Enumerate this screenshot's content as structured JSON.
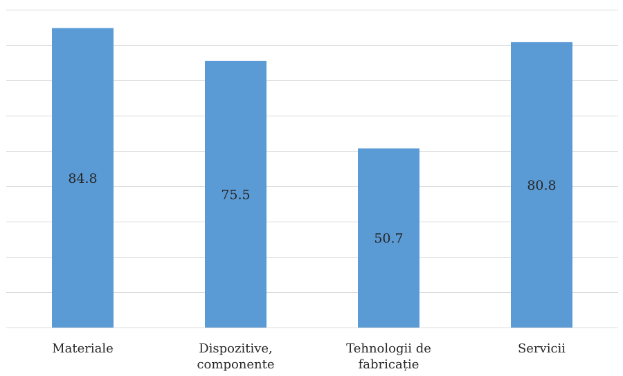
{
  "chart_data": {
    "type": "bar",
    "categories": [
      [
        "Materiale"
      ],
      [
        "Dispozitive,",
        "componente"
      ],
      [
        "Tehnologii de",
        "fabricație"
      ],
      [
        "Servicii"
      ]
    ],
    "values": [
      84.8,
      75.5,
      50.7,
      80.8
    ],
    "data_labels": [
      "84.8",
      "75.5",
      "50.7",
      "80.8"
    ],
    "ylim": [
      0,
      90
    ],
    "gridline_step": 10,
    "grid": true,
    "legend": "none",
    "colors": {
      "bar": "#5b9bd5",
      "grid": "#d9d9d9",
      "text": "#262626"
    }
  }
}
